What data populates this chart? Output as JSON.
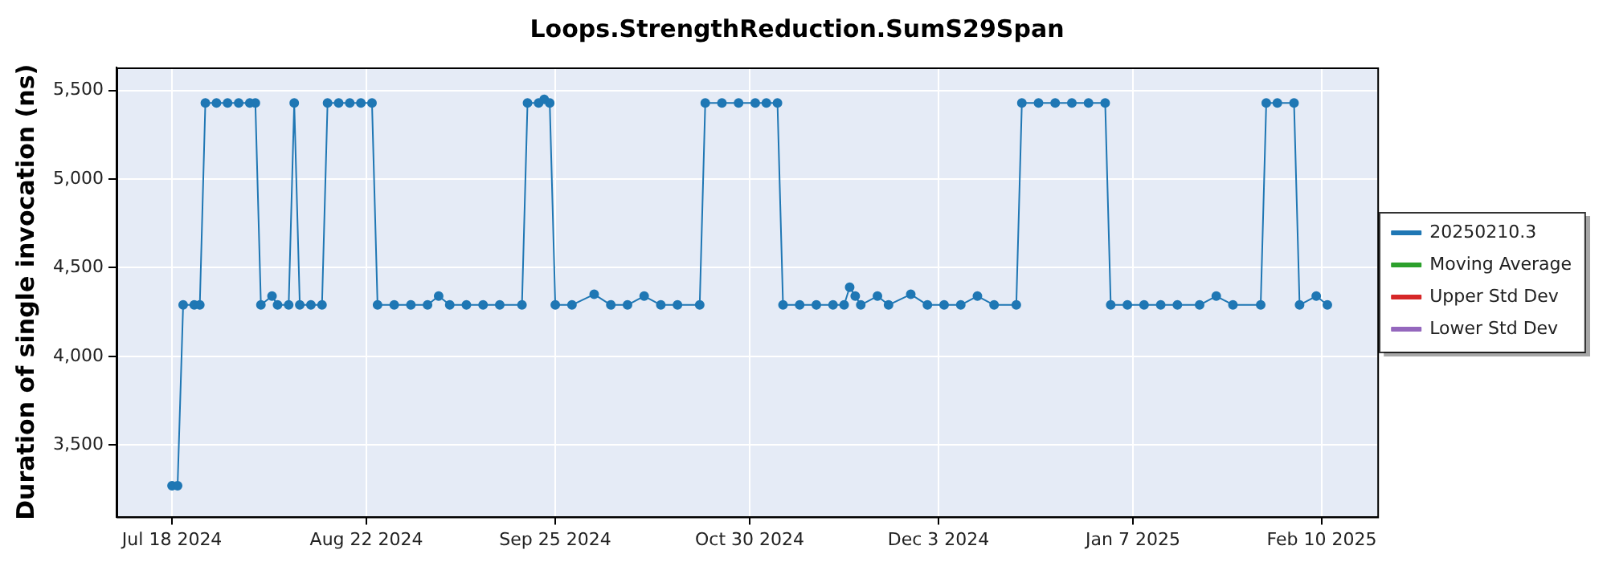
{
  "chart_data": {
    "type": "line",
    "title": "Loops.StrengthReduction.SumS29Span",
    "ylabel": "Duration of single invocation (ns)",
    "xlim": [
      "2024-07-08",
      "2025-02-20"
    ],
    "xticks": [
      {
        "value": "2024-07-18",
        "label": "Jul 18 2024"
      },
      {
        "value": "2024-08-22",
        "label": "Aug 22 2024"
      },
      {
        "value": "2024-09-25",
        "label": "Sep 25 2024"
      },
      {
        "value": "2024-10-30",
        "label": "Oct 30 2024"
      },
      {
        "value": "2024-12-03",
        "label": "Dec 3 2024"
      },
      {
        "value": "2025-01-07",
        "label": "Jan 7 2025"
      },
      {
        "value": "2025-02-10",
        "label": "Feb 10 2025"
      }
    ],
    "ylim": [
      3095,
      5630
    ],
    "yticks": [
      {
        "value": 3500,
        "label": "3,500"
      },
      {
        "value": 4000,
        "label": "4,000"
      },
      {
        "value": 4500,
        "label": "4,500"
      },
      {
        "value": 5000,
        "label": "5,000"
      },
      {
        "value": 5500,
        "label": "5,500"
      }
    ],
    "grid": true,
    "legend": "right",
    "marker": "circle",
    "series": [
      {
        "name": "20250210.3",
        "color": "#1f77b4",
        "x": [
          "2024-07-18",
          "2024-07-19",
          "2024-07-20",
          "2024-07-22",
          "2024-07-23",
          "2024-07-24",
          "2024-07-26",
          "2024-07-28",
          "2024-07-30",
          "2024-08-01",
          "2024-08-02",
          "2024-08-03",
          "2024-08-05",
          "2024-08-06",
          "2024-08-08",
          "2024-08-09",
          "2024-08-10",
          "2024-08-12",
          "2024-08-14",
          "2024-08-15",
          "2024-08-17",
          "2024-08-19",
          "2024-08-21",
          "2024-08-23",
          "2024-08-24",
          "2024-08-27",
          "2024-08-30",
          "2024-09-02",
          "2024-09-04",
          "2024-09-06",
          "2024-09-09",
          "2024-09-12",
          "2024-09-15",
          "2024-09-19",
          "2024-09-20",
          "2024-09-22",
          "2024-09-23",
          "2024-09-24",
          "2024-09-25",
          "2024-09-28",
          "2024-10-02",
          "2024-10-05",
          "2024-10-08",
          "2024-10-11",
          "2024-10-14",
          "2024-10-17",
          "2024-10-21",
          "2024-10-22",
          "2024-10-25",
          "2024-10-28",
          "2024-10-31",
          "2024-11-02",
          "2024-11-04",
          "2024-11-05",
          "2024-11-08",
          "2024-11-11",
          "2024-11-14",
          "2024-11-16",
          "2024-11-17",
          "2024-11-18",
          "2024-11-19",
          "2024-11-22",
          "2024-11-24",
          "2024-11-28",
          "2024-12-01",
          "2024-12-04",
          "2024-12-07",
          "2024-12-10",
          "2024-12-13",
          "2024-12-17",
          "2024-12-18",
          "2024-12-21",
          "2024-12-24",
          "2024-12-27",
          "2024-12-30",
          "2025-01-02",
          "2025-01-03",
          "2025-01-06",
          "2025-01-09",
          "2025-01-12",
          "2025-01-15",
          "2025-01-19",
          "2025-01-22",
          "2025-01-25",
          "2025-01-30",
          "2025-01-31",
          "2025-02-02",
          "2025-02-05",
          "2025-02-06",
          "2025-02-09",
          "2025-02-11"
        ],
        "values": [
          3270,
          3270,
          4290,
          4290,
          4290,
          5430,
          5430,
          5430,
          5430,
          5430,
          5430,
          4290,
          4340,
          4290,
          4290,
          5430,
          4290,
          4290,
          4290,
          5430,
          5430,
          5430,
          5430,
          5430,
          4290,
          4290,
          4290,
          4290,
          4340,
          4290,
          4290,
          4290,
          4290,
          4290,
          5430,
          5430,
          5450,
          5430,
          4290,
          4290,
          4350,
          4290,
          4290,
          4340,
          4290,
          4290,
          4290,
          5430,
          5430,
          5430,
          5430,
          5430,
          5430,
          4290,
          4290,
          4290,
          4290,
          4290,
          4390,
          4340,
          4290,
          4340,
          4290,
          4350,
          4290,
          4290,
          4290,
          4340,
          4290,
          4290,
          5430,
          5430,
          5430,
          5430,
          5430,
          5430,
          4290,
          4290,
          4290,
          4290,
          4290,
          4290,
          4340,
          4290,
          4290,
          5430,
          5430,
          5430,
          4290,
          4340,
          4290
        ]
      },
      {
        "name": "Moving Average",
        "color": "#2ca02c"
      },
      {
        "name": "Upper Std Dev",
        "color": "#d62728"
      },
      {
        "name": "Lower Std Dev",
        "color": "#9467bd"
      }
    ]
  }
}
